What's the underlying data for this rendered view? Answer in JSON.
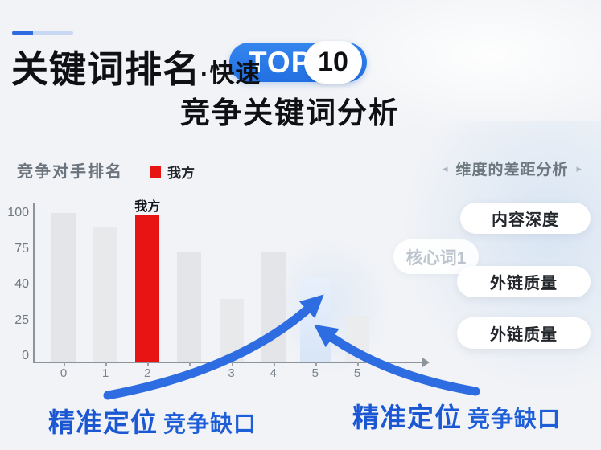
{
  "header": {
    "title": "关键词排名",
    "title_suffix": "·快速",
    "badge": {
      "label": "TOP",
      "number": "10",
      "bg": "#2b7ae9"
    },
    "subtitle": "竞争关键词分析"
  },
  "chart": {
    "title": "竞争对手排名",
    "legend_label": "我方",
    "legend_color": "#e81414",
    "ours_annotation": "我方"
  },
  "chart_data": {
    "type": "bar",
    "title": "竞争对手排名",
    "categories": [
      "0",
      "1",
      "2",
      "",
      "3",
      "4",
      "5",
      "5"
    ],
    "values": [
      100,
      91,
      99,
      74,
      42,
      74,
      56,
      31
    ],
    "bar_colors": [
      "#e3e5e8",
      "#e7e9ea",
      "#e81414",
      "#e3e5e8",
      "#e7e9ea",
      "#e3e5e8",
      "#e4edfa",
      "#eaecee"
    ],
    "ours_index": 2,
    "highlight_index": 6,
    "series": [
      {
        "name": "我方",
        "color": "#e81414",
        "bar_index": 2
      }
    ],
    "y_ticks": [
      "0",
      "25",
      "40",
      "75",
      "100"
    ],
    "ylim": [
      0,
      100
    ],
    "grid": false,
    "legend_position": "top",
    "annotations": [
      "我方 label above red bar",
      "blue arrows point to gap bar at x=5"
    ]
  },
  "side_panel": {
    "title": "维度的差距分析",
    "left_arrow": "◂",
    "right_arrow": "▸",
    "tags": [
      "内容深度",
      "外链质量",
      "外链质量"
    ],
    "faded_tag": "核心词1"
  },
  "callouts": {
    "left": {
      "strong": "精准定位",
      "rest": "竞争缺口"
    },
    "right": {
      "strong": "精准定位",
      "rest": "竞争缺口"
    }
  },
  "colors": {
    "accent_blue": "#2e6ce2",
    "ours_red": "#e81414",
    "callout_blue": "#1e5ed8",
    "background": "#f1f3f6"
  }
}
